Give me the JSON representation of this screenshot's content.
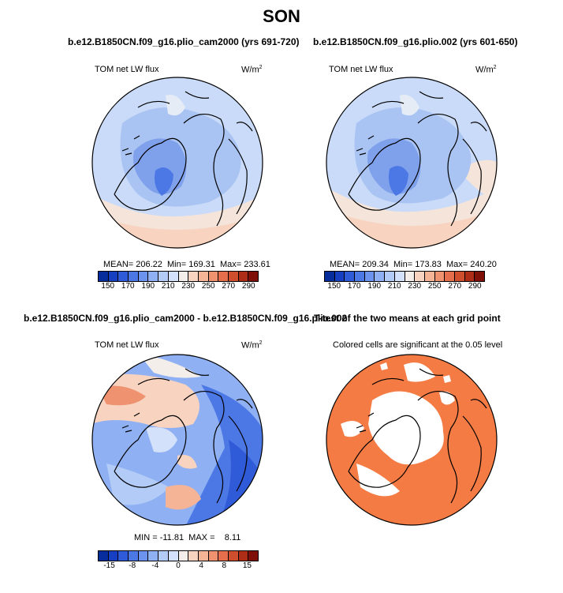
{
  "figure": {
    "title": "SON"
  },
  "panel_1": {
    "title": "b.e12.B1850CN.f09_g16.plio_cam2000 (yrs 691-720)",
    "variable": "TOM net LW flux",
    "units": "W/m",
    "units_exp": "2",
    "stats": "MEAN= 206.22  Min= 169.31  Max= 233.61"
  },
  "panel_2": {
    "title": "b.e12.B1850CN.f09_g16.plio.002 (yrs 601-650)",
    "variable": "TOM net LW flux",
    "units": "W/m",
    "units_exp": "2",
    "stats": "MEAN= 209.34  Min= 173.83  Max= 240.20"
  },
  "panel_3": {
    "title": "b.e12.B1850CN.f09_g16.plio_cam2000 - b.e12.B1850CN.f09_g16.plio.002",
    "variable": "TOM net LW flux",
    "units": "W/m",
    "units_exp": "2",
    "stats": "MIN = -11.81  MAX =    8.11"
  },
  "panel_4": {
    "title": "T-test of the two means at each grid point",
    "subtitle": "Colored cells are significant at the 0.05 level",
    "significant_color": "#f47b43"
  },
  "colorbar_top": {
    "colors": [
      "#062d9b",
      "#173fc2",
      "#2f5ad8",
      "#4c78e5",
      "#6c94ee",
      "#8fb0f3",
      "#b2cbf7",
      "#d3e1fa",
      "#f3eeea",
      "#f7d3c0",
      "#f5b496",
      "#ef9270",
      "#e56f4c",
      "#cf4e2e",
      "#ad2d17",
      "#7e1008"
    ],
    "ticks": [
      "150",
      "170",
      "190",
      "210",
      "230",
      "250",
      "270",
      "290"
    ]
  },
  "colorbar_diff": {
    "colors": [
      "#062d9b",
      "#173fc2",
      "#2f5ad8",
      "#4c78e5",
      "#6c94ee",
      "#8fb0f3",
      "#b2cbf7",
      "#d3e1fa",
      "#f3eeea",
      "#f7d3c0",
      "#f5b496",
      "#ef9270",
      "#e56f4c",
      "#cf4e2e",
      "#ad2d17",
      "#7e1008"
    ],
    "ticks": [
      "-15",
      "-8",
      "-4",
      "0",
      "4",
      "8",
      "15"
    ]
  }
}
